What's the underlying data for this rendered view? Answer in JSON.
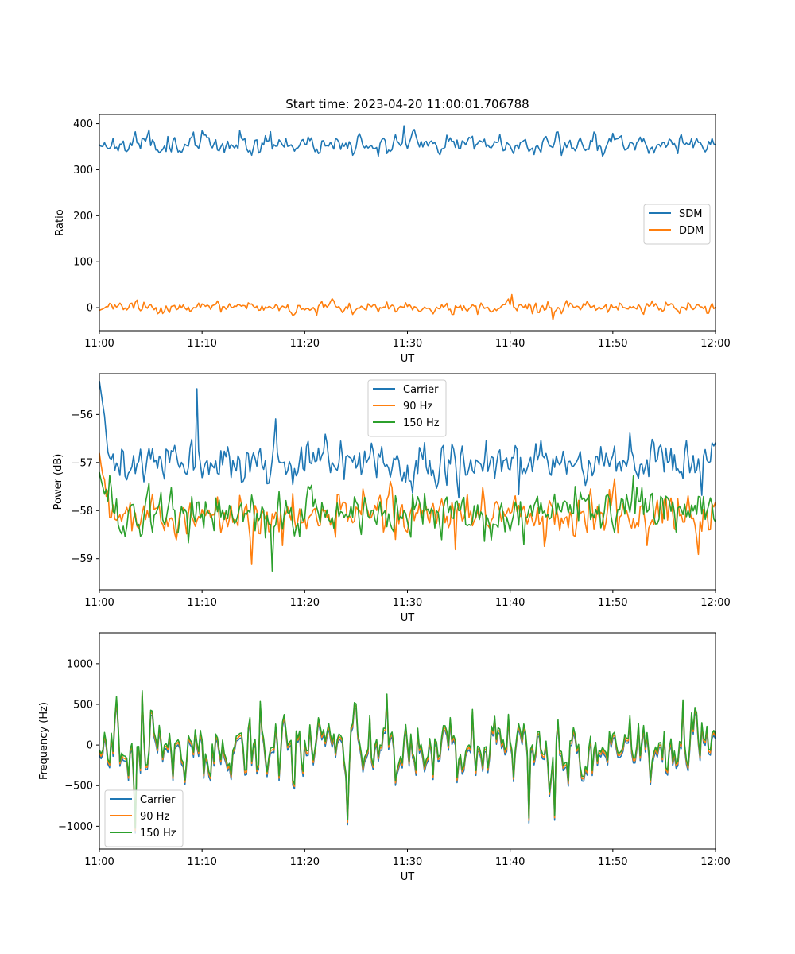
{
  "figure": {
    "title": "Start time: 2023-04-20 11:00:01.706788"
  },
  "chart_data": [
    {
      "type": "line",
      "title": "Start time: 2023-04-20 11:00:01.706788",
      "xlabel": "UT",
      "ylabel": "Ratio",
      "xlim": [
        "11:00",
        "12:00"
      ],
      "xticks": [
        "11:00",
        "11:10",
        "11:20",
        "11:30",
        "11:40",
        "11:50",
        "12:00"
      ],
      "ylim": [
        -50,
        420
      ],
      "yticks": [
        0,
        100,
        200,
        300,
        400
      ],
      "grid": false,
      "legend_loc": "center-right",
      "series": [
        {
          "name": "SDM",
          "color": "#1f77b4",
          "mean": 357,
          "amplitude": 18,
          "seed": 11,
          "points": 361
        },
        {
          "name": "DDM",
          "color": "#ff7f0e",
          "mean": 0,
          "amplitude": 10,
          "seed": 23,
          "points": 361
        }
      ]
    },
    {
      "type": "line",
      "title": "",
      "xlabel": "UT",
      "ylabel": "Power (dB)",
      "xlim": [
        "11:00",
        "12:00"
      ],
      "xticks": [
        "11:00",
        "11:10",
        "11:20",
        "11:30",
        "11:40",
        "11:50",
        "12:00"
      ],
      "ylim": [
        -59.65,
        -55.15
      ],
      "yticks": [
        -59,
        -58,
        -57,
        -56
      ],
      "grid": false,
      "legend_loc": "upper-center",
      "series": [
        {
          "name": "Carrier",
          "color": "#1f77b4",
          "mean": -57.0,
          "amplitude": 0.35,
          "seed": 31,
          "points": 361,
          "start": -55.3
        },
        {
          "name": "90 Hz",
          "color": "#ff7f0e",
          "mean": -58.1,
          "amplitude": 0.35,
          "seed": 47,
          "points": 361,
          "start": -56.8
        },
        {
          "name": "150 Hz",
          "color": "#2ca02c",
          "mean": -58.05,
          "amplitude": 0.38,
          "seed": 59,
          "points": 361,
          "start": -57.2
        }
      ]
    },
    {
      "type": "line",
      "title": "",
      "xlabel": "UT",
      "ylabel": "Frequency (Hz)",
      "xlim": [
        "11:00",
        "12:00"
      ],
      "xticks": [
        "11:00",
        "11:10",
        "11:20",
        "11:30",
        "11:40",
        "11:50",
        "12:00"
      ],
      "ylim": [
        -1280,
        1380
      ],
      "yticks": [
        -1000,
        -500,
        0,
        500,
        1000
      ],
      "grid": false,
      "legend_loc": "lower-left",
      "series": [
        {
          "name": "Carrier",
          "color": "#1f77b4",
          "mean": -60,
          "amplitude": 330,
          "seed": 71,
          "points": 361
        },
        {
          "name": "90 Hz",
          "color": "#ff7f0e",
          "mean": -30,
          "amplitude": 330,
          "seed": 71,
          "points": 361
        },
        {
          "name": "150 Hz",
          "color": "#2ca02c",
          "mean": 0,
          "amplitude": 330,
          "seed": 71,
          "points": 361
        }
      ]
    }
  ]
}
